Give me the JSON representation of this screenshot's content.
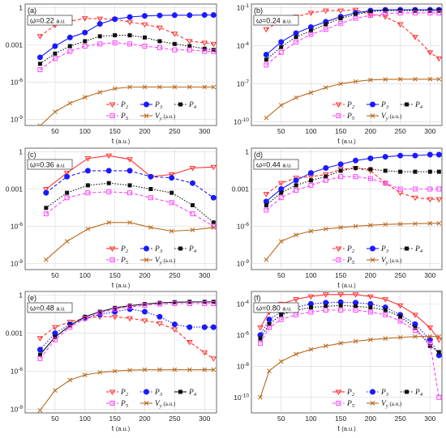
{
  "chart_data": [
    {
      "type": "line",
      "panel": "(a)",
      "omega": "ω=0.22 a.u.",
      "xlabel": "t (a.u.)",
      "xlim": [
        0,
        320
      ],
      "ylim_log10": [
        -9.5,
        0.3
      ],
      "xticks": [
        50,
        100,
        150,
        200,
        250,
        300
      ],
      "yticks": [
        {
          "v": 1,
          "label": "1"
        },
        {
          "v": 0.001,
          "label": "0.001"
        },
        {
          "v": 1e-06,
          "label": "10^-6"
        },
        {
          "v": 1e-09,
          "label": "10^-9"
        }
      ],
      "x": [
        25,
        50,
        75,
        100,
        125,
        150,
        175,
        200,
        225,
        250,
        275,
        300,
        315
      ],
      "series": [
        {
          "name": "P2",
          "color": "#ff3030",
          "marker": "tri",
          "dash": "dashed",
          "y": [
            0.005,
            0.04,
            0.08,
            0.14,
            0.13,
            0.12,
            0.07,
            0.045,
            0.025,
            0.008,
            0.002,
            0.0015,
            0.0012
          ]
        },
        {
          "name": "P3",
          "color": "#1a1aff",
          "marker": "circle",
          "dash": "solid",
          "y": [
            0.0001,
            0.0008,
            0.004,
            0.01,
            0.05,
            0.12,
            0.18,
            0.22,
            0.24,
            0.25,
            0.25,
            0.26,
            0.26
          ]
        },
        {
          "name": "P4",
          "color": "#111111",
          "marker": "square",
          "dash": "dotted",
          "y": [
            3e-05,
            0.0002,
            0.0008,
            0.002,
            0.005,
            0.006,
            0.006,
            0.004,
            0.002,
            0.0012,
            0.0008,
            0.0005,
            0.0004
          ]
        },
        {
          "name": "P5",
          "color": "#ff40ff",
          "marker": "sqopen",
          "dash": "dashed",
          "y": [
            1e-05,
            8e-05,
            0.0003,
            0.0008,
            0.0012,
            0.0015,
            0.0012,
            0.0008,
            0.0006,
            0.0004,
            0.0004,
            0.0003,
            0.0003
          ]
        },
        {
          "name": "Vy (a.u.)",
          "color": "#b86a1e",
          "marker": "x",
          "dash": "solid",
          "y": [
            3e-10,
            4e-09,
            2e-08,
            6e-08,
            1.5e-07,
            3e-07,
            4e-07,
            4e-07,
            4e-07,
            4e-07,
            4e-07,
            4e-07,
            4e-07
          ]
        }
      ]
    },
    {
      "type": "line",
      "panel": "(b)",
      "omega": "ω=0.24 a.u.",
      "xlabel": "t (a.u.)",
      "xlim": [
        0,
        320
      ],
      "ylim_log10": [
        -10.3,
        -0.7
      ],
      "xticks": [
        50,
        100,
        150,
        200,
        250,
        300
      ],
      "yticks": [
        {
          "v": 0.1,
          "label": "10^-1"
        },
        {
          "v": 0.0001,
          "label": "10^-4"
        },
        {
          "v": 1e-07,
          "label": "10^-7"
        },
        {
          "v": 1e-10,
          "label": "10^-10"
        }
      ],
      "x": [
        25,
        50,
        75,
        100,
        125,
        150,
        175,
        200,
        225,
        250,
        275,
        300,
        315
      ],
      "series": [
        {
          "name": "P2",
          "color": "#ff3030",
          "marker": "tri",
          "dash": "dashed",
          "y": [
            0.002,
            0.01,
            0.02,
            0.04,
            0.06,
            0.06,
            0.07,
            0.03,
            0.02,
            0.005,
            0.0005,
            3e-05,
            1e-05
          ]
        },
        {
          "name": "P3",
          "color": "#1a1aff",
          "marker": "circle",
          "dash": "solid",
          "y": [
            2e-05,
            0.0002,
            0.001,
            0.003,
            0.008,
            0.02,
            0.04,
            0.06,
            0.07,
            0.07,
            0.07,
            0.07,
            0.07
          ]
        },
        {
          "name": "P4",
          "color": "#111111",
          "marker": "square",
          "dash": "dotted",
          "y": [
            8e-06,
            8e-05,
            0.0005,
            0.0015,
            0.005,
            0.015,
            0.03,
            0.05,
            0.06,
            0.06,
            0.06,
            0.06,
            0.06
          ]
        },
        {
          "name": "P5",
          "color": "#ff40ff",
          "marker": "sqopen",
          "dash": "dashed",
          "y": [
            3e-06,
            3e-05,
            0.0002,
            0.0008,
            0.002,
            0.006,
            0.015,
            0.025,
            0.035,
            0.04,
            0.04,
            0.04,
            0.04
          ]
        },
        {
          "name": "Vy (a.u.)",
          "color": "#b86a1e",
          "marker": "x",
          "dash": "solid",
          "y": [
            2e-10,
            2e-09,
            8e-09,
            2e-08,
            5e-08,
            1e-07,
            1.5e-07,
            2e-07,
            2.2e-07,
            2.3e-07,
            2.3e-07,
            2.3e-07,
            2.3e-07
          ]
        }
      ]
    },
    {
      "type": "line",
      "panel": "(c)",
      "omega": "ω=0.36 a.u.",
      "xlabel": "t (a.u.)",
      "xlim": [
        0,
        320
      ],
      "ylim_log10": [
        -9.5,
        0.3
      ],
      "xticks": [
        50,
        100,
        150,
        200,
        250,
        300
      ],
      "yticks": [
        {
          "v": 1,
          "label": "1"
        },
        {
          "v": 0.001,
          "label": "0.001"
        },
        {
          "v": 1e-06,
          "label": "10^-6"
        },
        {
          "v": 1e-09,
          "label": "10^-9"
        }
      ],
      "x": [
        35,
        70,
        105,
        140,
        175,
        210,
        245,
        280,
        315
      ],
      "series": [
        {
          "name": "P2",
          "color": "#ff3030",
          "marker": "tri",
          "dash": "solid",
          "y": [
            0.001,
            0.02,
            0.3,
            0.5,
            0.25,
            0.01,
            0.015,
            0.05,
            0.06
          ]
        },
        {
          "name": "P3",
          "color": "#1a1aff",
          "marker": "circle",
          "dash": "dashed",
          "y": [
            0.0005,
            0.01,
            0.03,
            0.03,
            0.03,
            0.01,
            0.008,
            0.003,
            0.0002
          ]
        },
        {
          "name": "P4",
          "color": "#111111",
          "marker": "square",
          "dash": "dotted",
          "y": [
            3e-05,
            0.0005,
            0.002,
            0.003,
            0.002,
            0.001,
            0.0005,
            5e-05,
            2e-06
          ]
        },
        {
          "name": "P5",
          "color": "#ff40ff",
          "marker": "sqopen",
          "dash": "dashed",
          "y": [
            1e-05,
            0.0002,
            0.0005,
            0.0006,
            0.0005,
            0.0002,
            8e-05,
            1e-05,
            1e-06
          ]
        },
        {
          "name": "Vy (a.u.)",
          "color": "#b86a1e",
          "marker": "x",
          "dash": "solid",
          "y": [
            2e-09,
            6e-08,
            6e-07,
            2e-06,
            2e-06,
            8e-07,
            4e-07,
            5e-07,
            8e-07
          ]
        }
      ]
    },
    {
      "type": "line",
      "panel": "(d)",
      "omega": "ω=0.44 a.u.",
      "xlabel": "t (a.u.)",
      "xlim": [
        0,
        320
      ],
      "ylim_log10": [
        -9.5,
        0.3
      ],
      "xticks": [
        50,
        100,
        150,
        200,
        250,
        300
      ],
      "yticks": [
        {
          "v": 1,
          "label": "1"
        },
        {
          "v": 0.001,
          "label": "0.001"
        },
        {
          "v": 1e-06,
          "label": "10^-6"
        },
        {
          "v": 1e-09,
          "label": "10^-9"
        }
      ],
      "x": [
        25,
        50,
        75,
        100,
        125,
        150,
        175,
        200,
        225,
        250,
        275,
        300,
        315
      ],
      "series": [
        {
          "name": "P2",
          "color": "#ff3030",
          "marker": "tri",
          "dash": "dashed",
          "y": [
            0.0004,
            0.003,
            0.008,
            0.01,
            0.015,
            0.04,
            0.05,
            0.03,
            0.003,
            0.0005,
            0.0002,
            0.00015,
            0.00015
          ]
        },
        {
          "name": "P3",
          "color": "#1a1aff",
          "marker": "circle",
          "dash": "solid",
          "y": [
            0.0001,
            0.001,
            0.005,
            0.02,
            0.05,
            0.1,
            0.2,
            0.3,
            0.4,
            0.5,
            0.5,
            0.6,
            0.6
          ]
        },
        {
          "name": "P4",
          "color": "#111111",
          "marker": "square",
          "dash": "dotted",
          "y": [
            5e-05,
            0.0005,
            0.002,
            0.005,
            0.01,
            0.03,
            0.05,
            0.04,
            0.03,
            0.025,
            0.025,
            0.025,
            0.025
          ]
        },
        {
          "name": "P5",
          "color": "#ff40ff",
          "marker": "sqopen",
          "dash": "dashed",
          "y": [
            2e-05,
            0.0002,
            0.0008,
            0.002,
            0.005,
            0.01,
            0.01,
            0.007,
            0.003,
            0.001,
            0.001,
            0.001,
            0.001
          ]
        },
        {
          "name": "Vy (a.u.)",
          "color": "#b86a1e",
          "marker": "x",
          "dash": "solid",
          "y": [
            2e-09,
            6e-08,
            2e-07,
            4e-07,
            6e-07,
            8e-07,
            1e-06,
            1.2e-06,
            1.4e-06,
            1.5e-06,
            1.6e-06,
            1.7e-06,
            1.7e-06
          ]
        }
      ]
    },
    {
      "type": "line",
      "panel": "(e)",
      "omega": "ω=0.48 a.u.",
      "xlabel": "t (a.u.)",
      "xlim": [
        0,
        320
      ],
      "ylim_log10": [
        -9.3,
        0.3
      ],
      "xticks": [
        50,
        100,
        150,
        200,
        250,
        300
      ],
      "yticks": [
        {
          "v": 1,
          "label": "1"
        },
        {
          "v": 0.001,
          "label": "0.001"
        },
        {
          "v": 1e-06,
          "label": "10^-6"
        },
        {
          "v": 1e-09,
          "label": "10^-9"
        }
      ],
      "x": [
        25,
        50,
        75,
        100,
        125,
        150,
        175,
        200,
        225,
        250,
        275,
        300,
        315
      ],
      "series": [
        {
          "name": "P2",
          "color": "#ff3030",
          "marker": "tri",
          "dash": "dashed",
          "y": [
            0.0004,
            0.003,
            0.008,
            0.015,
            0.02,
            0.02,
            0.015,
            0.01,
            0.006,
            0.002,
            0.0002,
            3e-05,
            1e-05
          ]
        },
        {
          "name": "P3",
          "color": "#1a1aff",
          "marker": "circle",
          "dash": "dotted",
          "y": [
            5e-05,
            0.001,
            0.005,
            0.015,
            0.03,
            0.05,
            0.08,
            0.05,
            0.02,
            0.005,
            0.003,
            0.003,
            0.003
          ]
        },
        {
          "name": "P4",
          "color": "#111111",
          "marker": "square",
          "dash": "solid",
          "y": [
            2e-05,
            0.0005,
            0.004,
            0.02,
            0.05,
            0.1,
            0.15,
            0.2,
            0.25,
            0.28,
            0.3,
            0.3,
            0.3
          ]
        },
        {
          "name": "P5",
          "color": "#ff40ff",
          "marker": "sqopen",
          "dash": "dashed",
          "y": [
            1e-05,
            0.0003,
            0.003,
            0.015,
            0.04,
            0.08,
            0.12,
            0.16,
            0.2,
            0.22,
            0.22,
            0.22,
            0.22
          ]
        },
        {
          "name": "Vy (a.u.)",
          "color": "#b86a1e",
          "marker": "x",
          "dash": "solid",
          "y": [
            8e-10,
            3e-08,
            2e-07,
            5e-07,
            8e-07,
            1e-06,
            1.2e-06,
            1.3e-06,
            1.3e-06,
            1.3e-06,
            1.3e-06,
            1.3e-06,
            1.3e-06
          ]
        }
      ]
    },
    {
      "type": "line",
      "panel": "(f)",
      "omega": "ω=0.80 a.u.",
      "xlabel": "t (a.u.)",
      "xlim": [
        0,
        320
      ],
      "ylim_log10": [
        -11,
        -3.2
      ],
      "xticks": [
        50,
        100,
        150,
        200,
        250,
        300
      ],
      "yticks": [
        {
          "v": 0.0001,
          "label": "10^-4"
        },
        {
          "v": 1e-06,
          "label": "10^-6"
        },
        {
          "v": 1e-08,
          "label": "10^-8"
        },
        {
          "v": 1e-10,
          "label": "10^-10"
        }
      ],
      "x": [
        15,
        30,
        50,
        75,
        100,
        125,
        150,
        175,
        200,
        225,
        250,
        275,
        300,
        315
      ],
      "series": [
        {
          "name": "P2",
          "color": "#ff3030",
          "marker": "tri",
          "dash": "solid",
          "y": [
            3e-06,
            3e-05,
            0.0001,
            0.0002,
            0.0003,
            0.0004,
            0.0004,
            0.0004,
            0.0003,
            0.0002,
            8e-05,
            2e-05,
            3e-06,
            5e-07
          ]
        },
        {
          "name": "P3",
          "color": "#1a1aff",
          "marker": "circle",
          "dash": "dotted",
          "y": [
            1e-06,
            1e-05,
            3e-05,
            6e-05,
            0.0001,
            0.00012,
            0.00013,
            0.00012,
            0.0001,
            6e-05,
            2e-05,
            5e-06,
            5e-07,
            5e-08
          ]
        },
        {
          "name": "P4",
          "color": "#111111",
          "marker": "square",
          "dash": "dotted",
          "y": [
            6e-07,
            5e-06,
            2e-05,
            4e-05,
            6e-05,
            7e-05,
            8e-05,
            7e-05,
            6e-05,
            4e-05,
            1.5e-05,
            3e-06,
            2e-07,
            8e-08
          ]
        },
        {
          "name": "P5",
          "color": "#ff40ff",
          "marker": "sqopen",
          "dash": "dashed",
          "y": [
            3e-07,
            3e-06,
            1e-05,
            2e-05,
            3e-05,
            4e-05,
            4e-05,
            4e-05,
            3e-05,
            2e-05,
            8e-06,
            2e-06,
            3e-07,
            1e-10
          ]
        },
        {
          "name": "Vy (a.u.)",
          "color": "#b86a1e",
          "marker": "x",
          "dash": "solid",
          "y": [
            1e-10,
            5e-09,
            2e-08,
            6e-08,
            1.2e-07,
            2e-07,
            3e-07,
            4e-07,
            5e-07,
            6e-07,
            7e-07,
            8e-07,
            8e-07,
            8e-07
          ]
        }
      ]
    }
  ]
}
